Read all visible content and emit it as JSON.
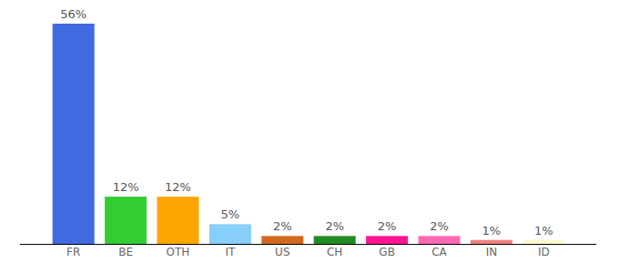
{
  "chart_data": {
    "type": "bar",
    "categories": [
      "FR",
      "BE",
      "OTH",
      "IT",
      "US",
      "CH",
      "GB",
      "CA",
      "IN",
      "ID"
    ],
    "values": [
      56,
      12,
      12,
      5,
      2,
      2,
      2,
      2,
      1,
      1
    ],
    "value_labels": [
      "56%",
      "12%",
      "12%",
      "5%",
      "2%",
      "2%",
      "2%",
      "2%",
      "1%",
      "1%"
    ],
    "colors": [
      "#4169e1",
      "#32cd32",
      "#ffa500",
      "#87cefa",
      "#d2691e",
      "#228b22",
      "#ff1493",
      "#ff69b4",
      "#f08080",
      "#fafad2"
    ],
    "ylim": [
      0,
      56
    ],
    "data_labels": true,
    "tick_labels": "x"
  }
}
